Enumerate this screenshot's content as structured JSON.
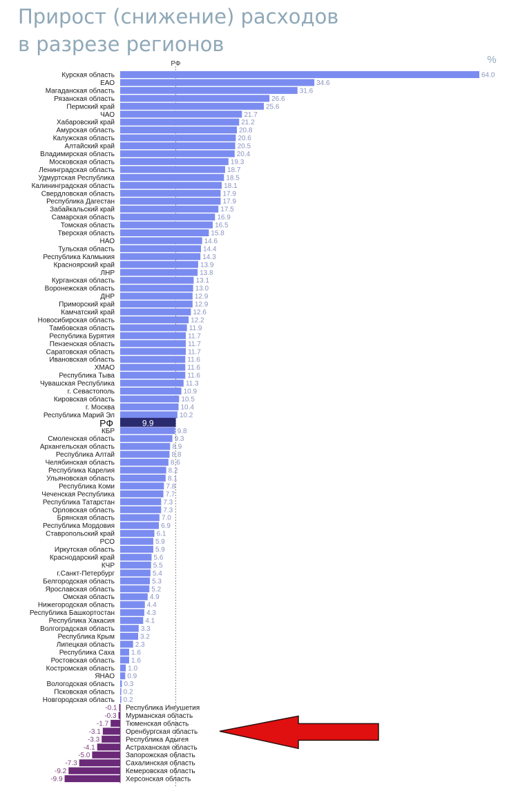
{
  "title": {
    "line1": "Прирост (снижение) расходов",
    "line2": "в разрезе регионов"
  },
  "chart_data": {
    "type": "bar",
    "orientation": "horizontal",
    "unit": "%",
    "reference": {
      "label": "РФ",
      "value": 9.9
    },
    "colors": {
      "positive": "#7b8cf0",
      "negative": "#6b2a78",
      "reference": "#2a2a6e",
      "refline": "#888888",
      "arrow": "#e01010"
    },
    "categories": [
      "Курская область",
      "ЕАО",
      "Магаданская область",
      "Рязанская область",
      "Пермский край",
      "ЧАО",
      "Хабаровский край",
      "Амурская область",
      "Калужская область",
      "Алтайский край",
      "Владимирская область",
      "Московская область",
      "Ленинградская область",
      "Удмуртская Республика",
      "Калининградская область",
      "Свердловская область",
      "Республика Дагестан",
      "Забайкальский край",
      "Самарская область",
      "Томская область",
      "Тверская область",
      "НАО",
      "Тульская область",
      "Республика Калмыкия",
      "Красноярский край",
      "ЛНР",
      "Курганская область",
      "Воронежская область",
      "ДНР",
      "Приморский край",
      "Камчатский край",
      "Новосибирская область",
      "Тамбовская область",
      "Республика Бурятия",
      "Пензенская область",
      "Саратовская область",
      "Ивановская область",
      "ХМАО",
      "Республика Тыва",
      "Чувашская Республика",
      "г. Севастополь",
      "Кировская область",
      "г. Москва",
      "Республика Марий Эл",
      "РФ",
      "КБР",
      "Смоленская область",
      "Архангельская область",
      "Республика Алтай",
      "Челябинская область",
      "Республика Карелия",
      "Ульяновская область",
      "Республика Коми",
      "Чеченская Республика",
      "Республика Татарстан",
      "Орловская область",
      "Брянская область",
      "Республика Мордовия",
      "Ставропольский край",
      "РСО",
      "Иркутская область",
      "Краснодарский край",
      "КЧР",
      "г.Санкт-Петербург",
      "Белгородская область",
      "Ярославская область",
      "Омская область",
      "Нижегородская область",
      "Республика Башкортостан",
      "Республика Хакасия",
      "Волгоградская область",
      "Республика Крым",
      "Липецкая область",
      "Республика Саха",
      "Ростовская область",
      "Костромская область",
      "ЯНАО",
      "Вологодская область",
      "Псковская область",
      "Новгородская область",
      "Республика Ингушетия",
      "Мурманская область",
      "Тюменская область",
      "Оренбургская область",
      "Республика Адыгея",
      "Астраханская область",
      "Запорожская область",
      "Сахалинская область",
      "Кемеровская область",
      "Херсонская область"
    ],
    "values": [
      64.0,
      34.6,
      31.6,
      26.6,
      25.6,
      21.7,
      21.2,
      20.8,
      20.6,
      20.5,
      20.4,
      19.3,
      18.7,
      18.5,
      18.1,
      17.9,
      17.9,
      17.5,
      16.9,
      16.5,
      15.8,
      14.6,
      14.4,
      14.3,
      13.9,
      13.8,
      13.1,
      13.0,
      12.9,
      12.9,
      12.6,
      12.2,
      11.9,
      11.7,
      11.7,
      11.7,
      11.6,
      11.6,
      11.6,
      11.3,
      10.9,
      10.5,
      10.4,
      10.2,
      9.9,
      9.8,
      9.3,
      8.9,
      8.8,
      8.6,
      8.2,
      8.1,
      7.8,
      7.7,
      7.3,
      7.3,
      7.0,
      6.9,
      6.1,
      5.9,
      5.9,
      5.6,
      5.5,
      5.4,
      5.3,
      5.2,
      4.9,
      4.4,
      4.3,
      4.1,
      3.3,
      3.2,
      2.3,
      1.6,
      1.6,
      1.0,
      0.9,
      0.3,
      0.2,
      0.2,
      -0.1,
      -0.3,
      -1.7,
      -3.1,
      -3.3,
      -4.1,
      -5.0,
      -7.3,
      -9.2,
      -9.9
    ],
    "value_labels": [
      "64.0",
      "34.6",
      "31.6",
      "26.6",
      "25.6",
      "21.7",
      "21.2",
      "20.8",
      "20.6",
      "20.5",
      "20.4",
      "19.3",
      "18.7",
      "18.5",
      "18.1",
      "17.9",
      "17.9",
      "17.5",
      "16.9",
      "16.5",
      "15.8",
      "14.6",
      "14.4",
      "14.3",
      "13.9",
      "13.8",
      "13.1",
      "13.0",
      "12.9",
      "12.9",
      "12.6",
      "12.2",
      "11.9",
      "11.7",
      "11.7",
      "11.7",
      "11.6",
      "11.6",
      "11.6",
      "11.3",
      "10.9",
      "10.5",
      "10.4",
      "10.2",
      "9.9",
      "9.8",
      "9.3",
      "8.9",
      "8.8",
      "8.6",
      "8.2",
      "8.1",
      "7.8",
      "7.7",
      "7.3",
      "7.3",
      "7.0",
      "6.9",
      "6.1",
      "5.9",
      "5.9",
      "5.6",
      "5.5",
      "5.4",
      "5.3",
      "5.2",
      "4.9",
      "4.4",
      "4.3",
      "4.1",
      "3.3",
      "3.2",
      "2.3",
      "1.6",
      "1.6",
      "1.0",
      "0.9",
      "0.3",
      "0.2",
      "0.2",
      "-0.1",
      "-0.3",
      "-1.7",
      "-3.1",
      "-3.3",
      "-4.1",
      "-5.0",
      "-7.3",
      "-9.2",
      "-9.9"
    ],
    "highlight": "Оренбургская область"
  }
}
